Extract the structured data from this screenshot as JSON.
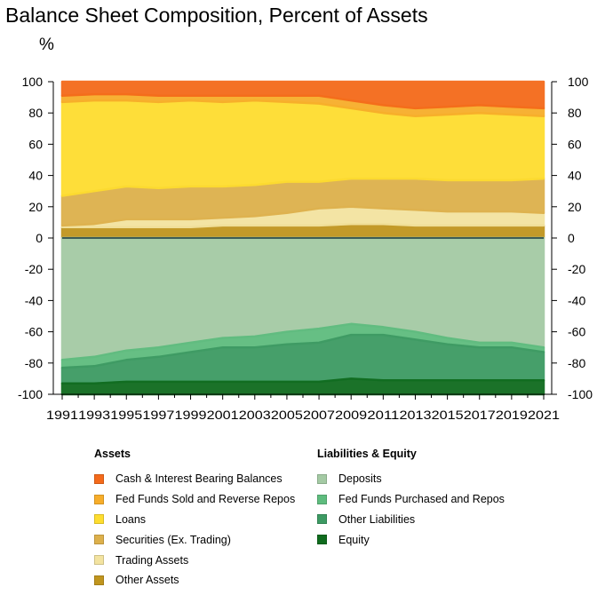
{
  "chart_data": {
    "type": "area",
    "title": "Balance Sheet Composition, Percent of Assets",
    "ylabel": "%",
    "ylim": [
      -100,
      100
    ],
    "yticks": [
      100,
      80,
      60,
      40,
      20,
      0,
      -20,
      -40,
      -60,
      -80,
      -100
    ],
    "x": [
      1991,
      1993,
      1995,
      1997,
      1999,
      2001,
      2003,
      2005,
      2007,
      2009,
      2011,
      2013,
      2015,
      2017,
      2019,
      2021
    ],
    "xtick_labels": [
      "1991",
      "1993",
      "1995",
      "1997",
      "1999",
      "2001",
      "2003",
      "2005",
      "2007",
      "2009",
      "2011",
      "2013",
      "2015",
      "2017",
      "2019",
      "2021"
    ],
    "legend_groups": [
      {
        "title": "Assets",
        "series": [
          "Cash & Interest Bearing Balances",
          "Fed Funds Sold and Reverse Repos",
          "Loans",
          "Securities (Ex. Trading)",
          "Trading Assets",
          "Other Assets"
        ]
      },
      {
        "title": "Liabilities & Equity",
        "series": [
          "Deposits",
          "Fed Funds Purchased and Repos",
          "Other Liabilities",
          "Equity"
        ]
      }
    ],
    "asset_series": [
      {
        "name": "Other Assets",
        "color": "#c0951e",
        "values": [
          7,
          7,
          7,
          7,
          7,
          8,
          8,
          8,
          8,
          9,
          9,
          8,
          8,
          8,
          8,
          8
        ]
      },
      {
        "name": "Trading Assets",
        "color": "#f3e3a0",
        "values": [
          1,
          2,
          5,
          5,
          5,
          5,
          6,
          8,
          11,
          11,
          10,
          10,
          9,
          9,
          9,
          8
        ]
      },
      {
        "name": "Securities (Ex. Trading)",
        "color": "#ddb04b",
        "values": [
          19,
          21,
          21,
          20,
          21,
          20,
          20,
          20,
          17,
          18,
          19,
          20,
          20,
          20,
          20,
          22
        ]
      },
      {
        "name": "Loans",
        "color": "#fedd2f",
        "values": [
          60,
          58,
          55,
          55,
          55,
          54,
          54,
          51,
          50,
          45,
          42,
          40,
          42,
          43,
          42,
          40
        ]
      },
      {
        "name": "Fed Funds Sold and Reverse Repos",
        "color": "#f7ad2a",
        "values": [
          4,
          4,
          4,
          4,
          3,
          4,
          3,
          4,
          5,
          5,
          5,
          5,
          5,
          5,
          5,
          5
        ]
      },
      {
        "name": "Cash & Interest Bearing Balances",
        "color": "#f46a1a",
        "values": [
          9,
          8,
          8,
          9,
          9,
          9,
          9,
          9,
          9,
          12,
          15,
          17,
          16,
          15,
          16,
          17
        ]
      }
    ],
    "liability_series": [
      {
        "name": "Deposits",
        "color": "#a4caa4",
        "values": [
          78,
          76,
          72,
          70,
          67,
          64,
          63,
          60,
          58,
          55,
          57,
          60,
          64,
          67,
          67,
          70
        ]
      },
      {
        "name": "Fed Funds Purchased and Repos",
        "color": "#5ebc7e",
        "values": [
          5,
          6,
          6,
          6,
          6,
          6,
          7,
          8,
          9,
          7,
          5,
          5,
          4,
          3,
          3,
          3
        ]
      },
      {
        "name": "Other Liabilities",
        "color": "#3d9a63",
        "values": [
          10,
          11,
          14,
          16,
          19,
          22,
          22,
          24,
          25,
          28,
          29,
          26,
          23,
          21,
          21,
          18
        ]
      },
      {
        "name": "Equity",
        "color": "#0f6b1e",
        "values": [
          7,
          7,
          8,
          8,
          8,
          8,
          8,
          8,
          8,
          10,
          9,
          9,
          9,
          9,
          9,
          9
        ]
      }
    ]
  }
}
